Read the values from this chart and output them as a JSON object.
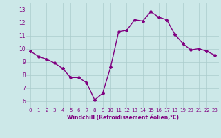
{
  "x": [
    0,
    1,
    2,
    3,
    4,
    5,
    6,
    7,
    8,
    9,
    10,
    11,
    12,
    13,
    14,
    15,
    16,
    17,
    18,
    19,
    20,
    21,
    22,
    23
  ],
  "y": [
    9.8,
    9.4,
    9.2,
    8.9,
    8.5,
    7.8,
    7.8,
    7.4,
    6.1,
    6.6,
    8.6,
    11.3,
    11.4,
    12.2,
    12.1,
    12.8,
    12.4,
    12.2,
    11.1,
    10.4,
    9.9,
    10.0,
    9.8,
    9.5
  ],
  "line_color": "#800080",
  "marker": "D",
  "marker_size": 2,
  "line_width": 1.0,
  "bg_color": "#cce8e8",
  "grid_color": "#aacccc",
  "xlabel": "Windchill (Refroidissement éolien,°C)",
  "xlabel_color": "#800080",
  "tick_color": "#800080",
  "ylim": [
    5.5,
    13.5
  ],
  "xlim": [
    -0.5,
    23.5
  ],
  "yticks": [
    6,
    7,
    8,
    9,
    10,
    11,
    12,
    13
  ],
  "xticks": [
    0,
    1,
    2,
    3,
    4,
    5,
    6,
    7,
    8,
    9,
    10,
    11,
    12,
    13,
    14,
    15,
    16,
    17,
    18,
    19,
    20,
    21,
    22,
    23
  ]
}
